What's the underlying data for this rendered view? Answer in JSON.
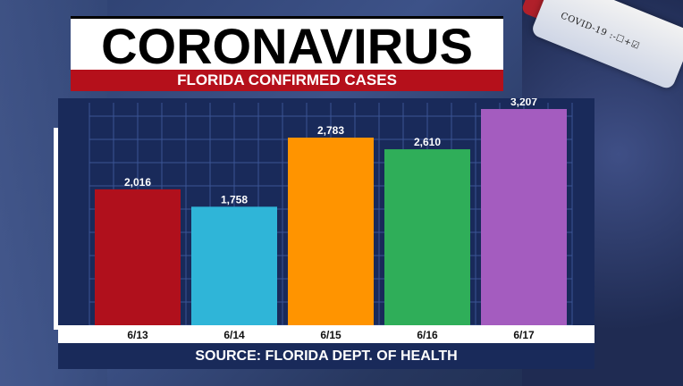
{
  "header": {
    "title": "CORONAVIRUS",
    "subtitle": "FLORIDA CONFIRMED CASES"
  },
  "background": {
    "tube_label": "COVID-19 :-☐+☑"
  },
  "footer": {
    "source": "SOURCE: FLORIDA DEPT. OF HEALTH"
  },
  "chart_data": {
    "type": "bar",
    "title": "FLORIDA CONFIRMED CASES",
    "xlabel": "",
    "ylabel": "",
    "categories": [
      "6/13",
      "6/14",
      "6/15",
      "6/16",
      "6/17"
    ],
    "values": [
      2016,
      1758,
      2783,
      2610,
      3207
    ],
    "value_labels": [
      "2,016",
      "1,758",
      "2,783",
      "2,610",
      "3,207"
    ],
    "colors": [
      "#b0101c",
      "#2fb5d8",
      "#ff9400",
      "#2fae59",
      "#a45cbf"
    ],
    "ylim": [
      0,
      3300
    ],
    "grid": true,
    "legend": "none"
  }
}
